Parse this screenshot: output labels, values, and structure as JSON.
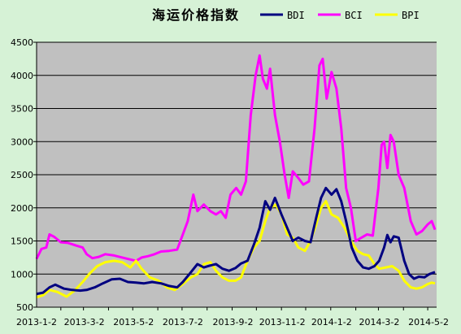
{
  "chart_data": {
    "type": "line",
    "title": "海运价格指数",
    "xlabel": "",
    "ylabel": "",
    "ylim": [
      500,
      4500
    ],
    "yticks": [
      500,
      1000,
      1500,
      2000,
      2500,
      3000,
      3500,
      4000,
      4500
    ],
    "x_tick_labels": [
      "2013-1-2",
      "2013-3-2",
      "2013-5-2",
      "2013-7-2",
      "2013-9-2",
      "2013-11-2",
      "2014-1-2",
      "2014-3-2",
      "2014-5-2"
    ],
    "x_tick_dates": [
      "2013-01-02",
      "2013-03-02",
      "2013-05-02",
      "2013-07-02",
      "2013-09-02",
      "2013-11-02",
      "2014-01-02",
      "2014-03-02",
      "2014-05-02"
    ],
    "xlim": [
      "2013-01-02",
      "2014-05-12"
    ],
    "grid": "horizontal",
    "legend_position": "top-right",
    "plot_background": "#c0c0c0",
    "series": [
      {
        "name": "BDI",
        "color": "#000080",
        "points": [
          [
            "2013-01-02",
            700
          ],
          [
            "2013-01-10",
            720
          ],
          [
            "2013-01-18",
            800
          ],
          [
            "2013-01-25",
            840
          ],
          [
            "2013-02-05",
            780
          ],
          [
            "2013-02-15",
            760
          ],
          [
            "2013-02-25",
            750
          ],
          [
            "2013-03-05",
            760
          ],
          [
            "2013-03-15",
            800
          ],
          [
            "2013-03-25",
            860
          ],
          [
            "2013-04-05",
            920
          ],
          [
            "2013-04-15",
            930
          ],
          [
            "2013-04-25",
            880
          ],
          [
            "2013-05-05",
            870
          ],
          [
            "2013-05-15",
            860
          ],
          [
            "2013-05-25",
            880
          ],
          [
            "2013-06-05",
            860
          ],
          [
            "2013-06-15",
            820
          ],
          [
            "2013-06-25",
            800
          ],
          [
            "2013-07-02",
            880
          ],
          [
            "2013-07-10",
            1000
          ],
          [
            "2013-07-20",
            1150
          ],
          [
            "2013-07-28",
            1100
          ],
          [
            "2013-08-05",
            1130
          ],
          [
            "2013-08-12",
            1150
          ],
          [
            "2013-08-20",
            1080
          ],
          [
            "2013-08-28",
            1050
          ],
          [
            "2013-09-05",
            1090
          ],
          [
            "2013-09-12",
            1160
          ],
          [
            "2013-09-20",
            1200
          ],
          [
            "2013-09-28",
            1450
          ],
          [
            "2013-10-05",
            1700
          ],
          [
            "2013-10-12",
            2100
          ],
          [
            "2013-10-18",
            1970
          ],
          [
            "2013-10-24",
            2150
          ],
          [
            "2013-11-01",
            1900
          ],
          [
            "2013-11-08",
            1700
          ],
          [
            "2013-11-15",
            1500
          ],
          [
            "2013-11-22",
            1550
          ],
          [
            "2013-11-30",
            1500
          ],
          [
            "2013-12-07",
            1480
          ],
          [
            "2013-12-14",
            1850
          ],
          [
            "2013-12-20",
            2150
          ],
          [
            "2013-12-26",
            2300
          ],
          [
            "2014-01-02",
            2200
          ],
          [
            "2014-01-08",
            2280
          ],
          [
            "2014-01-14",
            2100
          ],
          [
            "2014-01-20",
            1800
          ],
          [
            "2014-01-27",
            1400
          ],
          [
            "2014-02-03",
            1200
          ],
          [
            "2014-02-10",
            1100
          ],
          [
            "2014-02-17",
            1080
          ],
          [
            "2014-02-24",
            1120
          ],
          [
            "2014-03-02",
            1200
          ],
          [
            "2014-03-08",
            1400
          ],
          [
            "2014-03-12",
            1590
          ],
          [
            "2014-03-16",
            1480
          ],
          [
            "2014-03-20",
            1570
          ],
          [
            "2014-03-26",
            1550
          ],
          [
            "2014-04-02",
            1200
          ],
          [
            "2014-04-08",
            1000
          ],
          [
            "2014-04-14",
            930
          ],
          [
            "2014-04-20",
            960
          ],
          [
            "2014-04-27",
            950
          ],
          [
            "2014-05-03",
            1000
          ],
          [
            "2014-05-10",
            1030
          ]
        ]
      },
      {
        "name": "BCI",
        "color": "#ff00ff",
        "points": [
          [
            "2013-01-02",
            1230
          ],
          [
            "2013-01-08",
            1380
          ],
          [
            "2013-01-14",
            1400
          ],
          [
            "2013-01-18",
            1600
          ],
          [
            "2013-01-24",
            1560
          ],
          [
            "2013-02-01",
            1480
          ],
          [
            "2013-02-10",
            1470
          ],
          [
            "2013-02-20",
            1430
          ],
          [
            "2013-02-28",
            1400
          ],
          [
            "2013-03-05",
            1300
          ],
          [
            "2013-03-12",
            1240
          ],
          [
            "2013-03-20",
            1260
          ],
          [
            "2013-03-28",
            1300
          ],
          [
            "2013-04-08",
            1280
          ],
          [
            "2013-04-18",
            1250
          ],
          [
            "2013-04-28",
            1220
          ],
          [
            "2013-05-05",
            1200
          ],
          [
            "2013-05-12",
            1250
          ],
          [
            "2013-05-20",
            1270
          ],
          [
            "2013-05-28",
            1300
          ],
          [
            "2013-06-05",
            1340
          ],
          [
            "2013-06-15",
            1350
          ],
          [
            "2013-06-25",
            1370
          ],
          [
            "2013-07-02",
            1600
          ],
          [
            "2013-07-08",
            1800
          ],
          [
            "2013-07-15",
            2200
          ],
          [
            "2013-07-20",
            1950
          ],
          [
            "2013-07-28",
            2050
          ],
          [
            "2013-08-05",
            1950
          ],
          [
            "2013-08-12",
            1900
          ],
          [
            "2013-08-18",
            1950
          ],
          [
            "2013-08-24",
            1850
          ],
          [
            "2013-08-30",
            2200
          ],
          [
            "2013-09-06",
            2300
          ],
          [
            "2013-09-12",
            2200
          ],
          [
            "2013-09-18",
            2400
          ],
          [
            "2013-09-24",
            3400
          ],
          [
            "2013-09-30",
            4000
          ],
          [
            "2013-10-05",
            4300
          ],
          [
            "2013-10-09",
            3950
          ],
          [
            "2013-10-14",
            3800
          ],
          [
            "2013-10-18",
            4100
          ],
          [
            "2013-10-24",
            3400
          ],
          [
            "2013-10-30",
            3000
          ],
          [
            "2013-11-05",
            2500
          ],
          [
            "2013-11-10",
            2150
          ],
          [
            "2013-11-15",
            2550
          ],
          [
            "2013-11-22",
            2450
          ],
          [
            "2013-11-28",
            2350
          ],
          [
            "2013-12-05",
            2400
          ],
          [
            "2013-12-12",
            3200
          ],
          [
            "2013-12-18",
            4150
          ],
          [
            "2013-12-22",
            4250
          ],
          [
            "2013-12-27",
            3650
          ],
          [
            "2014-01-02",
            4050
          ],
          [
            "2014-01-08",
            3800
          ],
          [
            "2014-01-14",
            3200
          ],
          [
            "2014-01-20",
            2300
          ],
          [
            "2014-01-26",
            2000
          ],
          [
            "2014-02-01",
            1500
          ],
          [
            "2014-02-08",
            1550
          ],
          [
            "2014-02-15",
            1600
          ],
          [
            "2014-02-22",
            1580
          ],
          [
            "2014-03-01",
            2300
          ],
          [
            "2014-03-05",
            2950
          ],
          [
            "2014-03-08",
            3000
          ],
          [
            "2014-03-12",
            2600
          ],
          [
            "2014-03-16",
            3100
          ],
          [
            "2014-03-20",
            3000
          ],
          [
            "2014-03-26",
            2500
          ],
          [
            "2014-04-02",
            2300
          ],
          [
            "2014-04-10",
            1800
          ],
          [
            "2014-04-17",
            1600
          ],
          [
            "2014-04-24",
            1650
          ],
          [
            "2014-05-01",
            1750
          ],
          [
            "2014-05-06",
            1800
          ],
          [
            "2014-05-10",
            1670
          ]
        ]
      },
      {
        "name": "BPI",
        "color": "#ffff00",
        "points": [
          [
            "2013-01-02",
            650
          ],
          [
            "2013-01-10",
            680
          ],
          [
            "2013-01-18",
            760
          ],
          [
            "2013-01-28",
            730
          ],
          [
            "2013-02-08",
            660
          ],
          [
            "2013-02-18",
            750
          ],
          [
            "2013-02-28",
            880
          ],
          [
            "2013-03-08",
            1000
          ],
          [
            "2013-03-18",
            1120
          ],
          [
            "2013-03-28",
            1180
          ],
          [
            "2013-04-08",
            1200
          ],
          [
            "2013-04-18",
            1180
          ],
          [
            "2013-04-28",
            1100
          ],
          [
            "2013-05-05",
            1200
          ],
          [
            "2013-05-12",
            1080
          ],
          [
            "2013-05-22",
            950
          ],
          [
            "2013-06-02",
            900
          ],
          [
            "2013-06-12",
            800
          ],
          [
            "2013-06-22",
            760
          ],
          [
            "2013-07-02",
            850
          ],
          [
            "2013-07-12",
            950
          ],
          [
            "2013-07-20",
            1000
          ],
          [
            "2013-07-28",
            1150
          ],
          [
            "2013-08-05",
            1180
          ],
          [
            "2013-08-12",
            1050
          ],
          [
            "2013-08-20",
            950
          ],
          [
            "2013-08-28",
            900
          ],
          [
            "2013-09-05",
            900
          ],
          [
            "2013-09-12",
            950
          ],
          [
            "2013-09-20",
            1200
          ],
          [
            "2013-09-28",
            1400
          ],
          [
            "2013-10-05",
            1500
          ],
          [
            "2013-10-12",
            1800
          ],
          [
            "2013-10-18",
            2000
          ],
          [
            "2013-10-25",
            2050
          ],
          [
            "2013-11-01",
            1900
          ],
          [
            "2013-11-08",
            1600
          ],
          [
            "2013-11-15",
            1550
          ],
          [
            "2013-11-22",
            1400
          ],
          [
            "2013-11-30",
            1350
          ],
          [
            "2013-12-07",
            1500
          ],
          [
            "2013-12-14",
            1750
          ],
          [
            "2013-12-20",
            2000
          ],
          [
            "2013-12-26",
            2100
          ],
          [
            "2014-01-02",
            1900
          ],
          [
            "2014-01-10",
            1850
          ],
          [
            "2014-01-18",
            1700
          ],
          [
            "2014-01-26",
            1500
          ],
          [
            "2014-02-03",
            1350
          ],
          [
            "2014-02-10",
            1300
          ],
          [
            "2014-02-17",
            1280
          ],
          [
            "2014-02-24",
            1150
          ],
          [
            "2014-03-02",
            1080
          ],
          [
            "2014-03-10",
            1100
          ],
          [
            "2014-03-18",
            1120
          ],
          [
            "2014-03-26",
            1050
          ],
          [
            "2014-04-02",
            900
          ],
          [
            "2014-04-10",
            800
          ],
          [
            "2014-04-17",
            780
          ],
          [
            "2014-04-24",
            800
          ],
          [
            "2014-05-01",
            850
          ],
          [
            "2014-05-06",
            870
          ],
          [
            "2014-05-10",
            860
          ]
        ]
      }
    ]
  }
}
